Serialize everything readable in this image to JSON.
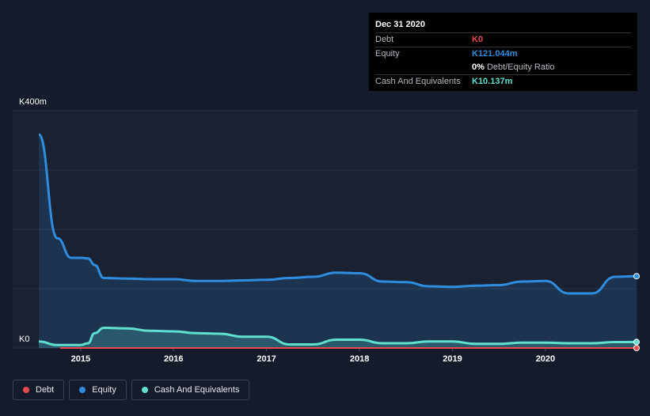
{
  "tooltip": {
    "date": "Dec 31 2020",
    "rows": [
      {
        "label": "Debt",
        "value": "K0",
        "color": "#e84b4b"
      },
      {
        "label": "Equity",
        "value": "K121.044m",
        "color": "#2f8ddf"
      },
      {
        "label": "",
        "value": "0%",
        "sub": "Debt/Equity Ratio",
        "color": "#ffffff"
      },
      {
        "label": "Cash And Equivalents",
        "value": "K10.137m",
        "color": "#5fe0cf"
      }
    ]
  },
  "legend": [
    {
      "label": "Debt",
      "color": "#e84b4b"
    },
    {
      "label": "Equity",
      "color": "#2f8ddf"
    },
    {
      "label": "Cash And Equivalents",
      "color": "#5fe0cf"
    }
  ],
  "chart_data": {
    "type": "area",
    "ylim": [
      0,
      400
    ],
    "xlim": [
      2014.55,
      2020.98
    ],
    "y_tick_labels": [
      {
        "value": 400,
        "label": "K400m"
      },
      {
        "value": 0,
        "label": "K0"
      }
    ],
    "x_ticks": [
      2015,
      2016,
      2017,
      2018,
      2019,
      2020
    ],
    "x_tick_labels": [
      "2015",
      "2016",
      "2017",
      "2018",
      "2019",
      "2020"
    ],
    "grid": true,
    "legend_position": "bottom-left",
    "series": [
      {
        "name": "Equity",
        "color": "#2f8ddf",
        "x": [
          2014.55,
          2014.75,
          2014.9,
          2015.0,
          2015.08,
          2015.15,
          2015.25,
          2015.5,
          2015.75,
          2016.0,
          2016.25,
          2016.5,
          2016.75,
          2017.0,
          2017.25,
          2017.5,
          2017.75,
          2018.0,
          2018.25,
          2018.5,
          2018.75,
          2019.0,
          2019.25,
          2019.5,
          2019.75,
          2020.0,
          2020.25,
          2020.5,
          2020.75,
          2020.98
        ],
        "values": [
          360,
          185,
          152,
          152,
          151,
          140,
          118,
          117,
          116,
          116,
          113,
          113,
          114,
          115,
          118,
          120,
          127,
          126,
          112,
          111,
          104,
          103,
          105,
          106,
          112,
          113,
          92,
          92,
          120,
          121.044
        ]
      },
      {
        "name": "Cash And Equivalents",
        "color": "#5fe0cf",
        "x": [
          2014.55,
          2014.75,
          2014.9,
          2015.0,
          2015.08,
          2015.15,
          2015.25,
          2015.5,
          2015.75,
          2016.0,
          2016.25,
          2016.5,
          2016.75,
          2017.0,
          2017.25,
          2017.5,
          2017.75,
          2018.0,
          2018.25,
          2018.5,
          2018.75,
          2019.0,
          2019.25,
          2019.5,
          2019.75,
          2020.0,
          2020.25,
          2020.5,
          2020.75,
          2020.98
        ],
        "values": [
          11,
          5,
          5,
          5,
          8,
          25,
          34,
          33,
          29,
          28,
          25,
          24,
          19,
          19,
          6,
          6,
          14,
          14,
          8,
          8,
          11,
          11,
          7,
          7,
          9,
          9,
          8,
          8,
          10,
          10.137
        ]
      },
      {
        "name": "Debt",
        "color": "#e84b4b",
        "x": [
          2014.78,
          2020.98
        ],
        "values": [
          0,
          0
        ]
      }
    ]
  }
}
